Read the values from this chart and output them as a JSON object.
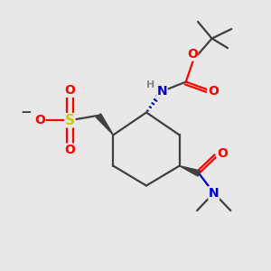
{
  "bg_color": "#e8e8e8",
  "bond_color": "#404040",
  "atom_colors": {
    "O": "#ff0000",
    "N": "#0000cc",
    "S": "#cccc00",
    "H": "#888888",
    "C": "#404040",
    "neg": "#404040"
  },
  "bw": 1.6,
  "fs": 10,
  "sfs": 8
}
